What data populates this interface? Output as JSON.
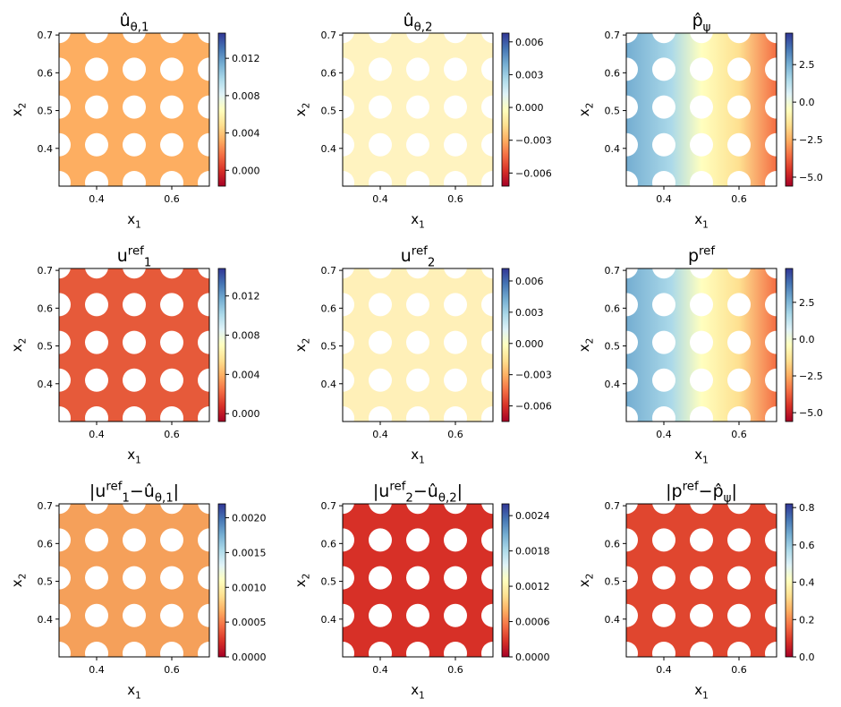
{
  "chart_data": [
    {
      "type": "heatmap",
      "colormap": "RdYlBu",
      "title": [
        [
          "û",
          ""
        ],
        [
          "θ,1",
          "sub"
        ]
      ],
      "xlabel": [
        [
          "x",
          ""
        ],
        [
          "1",
          "sub"
        ]
      ],
      "ylabel": [
        [
          "x",
          ""
        ],
        [
          "2",
          "sub"
        ]
      ],
      "xlim": [
        0.3,
        0.7
      ],
      "xticks": [
        0.4,
        0.6
      ],
      "ylim": [
        0.3,
        0.705
      ],
      "yticks": [
        0.4,
        0.5,
        0.6,
        0.7
      ],
      "clim": [
        -0.0017,
        0.0147
      ],
      "cticks": [
        {
          "value": 0,
          "label": "0.000"
        },
        0.004,
        0.008,
        0.012
      ]
    },
    {
      "type": "heatmap",
      "colormap": "RdYlBu",
      "title": [
        [
          "û",
          ""
        ],
        [
          "θ,2",
          "sub"
        ]
      ],
      "xlabel": [
        [
          "x",
          ""
        ],
        [
          "1",
          "sub"
        ]
      ],
      "ylabel": [
        [
          "x",
          ""
        ],
        [
          "2",
          "sub"
        ]
      ],
      "xlim": [
        0.3,
        0.7
      ],
      "xticks": [
        0.4,
        0.6
      ],
      "ylim": [
        0.3,
        0.705
      ],
      "yticks": [
        0.4,
        0.5,
        0.6,
        0.7
      ],
      "clim": [
        -0.0072,
        0.0068
      ],
      "cticks": [
        {
          "value": -0.006,
          "label": "−0.006"
        },
        {
          "value": -0.003,
          "label": "−0.003"
        },
        {
          "value": 0,
          "label": "0.000"
        },
        0.003,
        0.006
      ]
    },
    {
      "type": "heatmap",
      "colormap": "RdYlBu",
      "title": [
        [
          "p̂",
          ""
        ],
        [
          "ψ",
          "sub"
        ]
      ],
      "xlabel": [
        [
          "x",
          ""
        ],
        [
          "1",
          "sub"
        ]
      ],
      "ylabel": [
        [
          "x",
          ""
        ],
        [
          "2",
          "sub"
        ]
      ],
      "xlim": [
        0.3,
        0.7
      ],
      "xticks": [
        0.4,
        0.6
      ],
      "ylim": [
        0.3,
        0.705
      ],
      "yticks": [
        0.4,
        0.5,
        0.6,
        0.7
      ],
      "clim": [
        -5.6,
        4.6
      ],
      "cticks": [
        {
          "value": -5,
          "label": "−5.0"
        },
        {
          "value": -2.5,
          "label": "−2.5"
        },
        {
          "value": 0,
          "label": "0.0"
        },
        2.5
      ]
    },
    {
      "type": "heatmap",
      "colormap": "RdYlBu",
      "title": [
        [
          "u",
          ""
        ],
        [
          "ref",
          "sup"
        ],
        [
          "1",
          "sub"
        ]
      ],
      "xlabel": [
        [
          "x",
          ""
        ],
        [
          "1",
          "sub"
        ]
      ],
      "ylabel": [
        [
          "x",
          ""
        ],
        [
          "2",
          "sub"
        ]
      ],
      "xlim": [
        0.3,
        0.7
      ],
      "xticks": [
        0.4,
        0.6
      ],
      "ylim": [
        0.3,
        0.705
      ],
      "yticks": [
        0.4,
        0.5,
        0.6,
        0.7
      ],
      "clim": [
        -0.0008,
        0.0148
      ],
      "cticks": [
        {
          "value": 0,
          "label": "0.000"
        },
        0.004,
        0.008,
        0.012
      ]
    },
    {
      "type": "heatmap",
      "colormap": "RdYlBu",
      "title": [
        [
          "u",
          ""
        ],
        [
          "ref",
          "sup"
        ],
        [
          "2",
          "sub"
        ]
      ],
      "xlabel": [
        [
          "x",
          ""
        ],
        [
          "1",
          "sub"
        ]
      ],
      "ylabel": [
        [
          "x",
          ""
        ],
        [
          "2",
          "sub"
        ]
      ],
      "xlim": [
        0.3,
        0.7
      ],
      "xticks": [
        0.4,
        0.6
      ],
      "ylim": [
        0.3,
        0.705
      ],
      "yticks": [
        0.4,
        0.5,
        0.6,
        0.7
      ],
      "clim": [
        -0.0075,
        0.0072
      ],
      "cticks": [
        {
          "value": -0.006,
          "label": "−0.006"
        },
        {
          "value": -0.003,
          "label": "−0.003"
        },
        {
          "value": 0,
          "label": "0.000"
        },
        0.003,
        0.006
      ]
    },
    {
      "type": "heatmap",
      "colormap": "RdYlBu",
      "title": [
        [
          "p",
          ""
        ],
        [
          "ref",
          "sup"
        ]
      ],
      "xlabel": [
        [
          "x",
          ""
        ],
        [
          "1",
          "sub"
        ]
      ],
      "ylabel": [
        [
          "x",
          ""
        ],
        [
          "2",
          "sub"
        ]
      ],
      "xlim": [
        0.3,
        0.7
      ],
      "xticks": [
        0.4,
        0.6
      ],
      "ylim": [
        0.3,
        0.705
      ],
      "yticks": [
        0.4,
        0.5,
        0.6,
        0.7
      ],
      "clim": [
        -5.6,
        4.8
      ],
      "cticks": [
        {
          "value": -5,
          "label": "−5.0"
        },
        {
          "value": -2.5,
          "label": "−2.5"
        },
        {
          "value": 0,
          "label": "0.0"
        },
        2.5
      ]
    },
    {
      "type": "heatmap",
      "colormap": "RdYlBu",
      "title": [
        [
          "|u",
          ""
        ],
        [
          "ref",
          "sup"
        ],
        [
          "1",
          "sub"
        ],
        [
          "−û",
          ""
        ],
        [
          "θ,1",
          "sub"
        ],
        [
          "|",
          ""
        ]
      ],
      "xlabel": [
        [
          "x",
          ""
        ],
        [
          "1",
          "sub"
        ]
      ],
      "ylabel": [
        [
          "x",
          ""
        ],
        [
          "2",
          "sub"
        ]
      ],
      "xlim": [
        0.3,
        0.7
      ],
      "xticks": [
        0.4,
        0.6
      ],
      "ylim": [
        0.3,
        0.705
      ],
      "yticks": [
        0.4,
        0.5,
        0.6,
        0.7
      ],
      "clim": [
        0,
        0.0022
      ],
      "cticks": [
        {
          "value": 0,
          "label": "0.0000"
        },
        0.0005,
        {
          "value": 0.001,
          "label": "0.0010"
        },
        0.0015,
        {
          "value": 0.002,
          "label": "0.0020"
        }
      ]
    },
    {
      "type": "heatmap",
      "colormap": "RdYlBu",
      "title": [
        [
          "|u",
          ""
        ],
        [
          "ref",
          "sup"
        ],
        [
          "2",
          "sub"
        ],
        [
          "−û",
          ""
        ],
        [
          "θ,2",
          "sub"
        ],
        [
          "|",
          ""
        ]
      ],
      "xlabel": [
        [
          "x",
          ""
        ],
        [
          "1",
          "sub"
        ]
      ],
      "ylabel": [
        [
          "x",
          ""
        ],
        [
          "2",
          "sub"
        ]
      ],
      "xlim": [
        0.3,
        0.7
      ],
      "xticks": [
        0.4,
        0.6
      ],
      "ylim": [
        0.3,
        0.705
      ],
      "yticks": [
        0.4,
        0.5,
        0.6,
        0.7
      ],
      "clim": [
        0,
        0.0026
      ],
      "cticks": [
        {
          "value": 0,
          "label": "0.0000"
        },
        0.0006,
        0.0012,
        0.0018,
        0.0024
      ]
    },
    {
      "type": "heatmap",
      "colormap": "RdYlBu",
      "title": [
        [
          "|p",
          ""
        ],
        [
          "ref",
          "sup"
        ],
        [
          "−p̂",
          ""
        ],
        [
          "ψ",
          "sub"
        ],
        [
          "|",
          ""
        ]
      ],
      "xlabel": [
        [
          "x",
          ""
        ],
        [
          "1",
          "sub"
        ]
      ],
      "ylabel": [
        [
          "x",
          ""
        ],
        [
          "2",
          "sub"
        ]
      ],
      "xlim": [
        0.3,
        0.7
      ],
      "xticks": [
        0.4,
        0.6
      ],
      "ylim": [
        0.3,
        0.705
      ],
      "yticks": [
        0.4,
        0.5,
        0.6,
        0.7
      ],
      "clim": [
        0,
        0.82
      ],
      "cticks": [
        {
          "value": 0,
          "label": "0.0"
        },
        0.2,
        0.4,
        0.6,
        0.8
      ]
    }
  ]
}
